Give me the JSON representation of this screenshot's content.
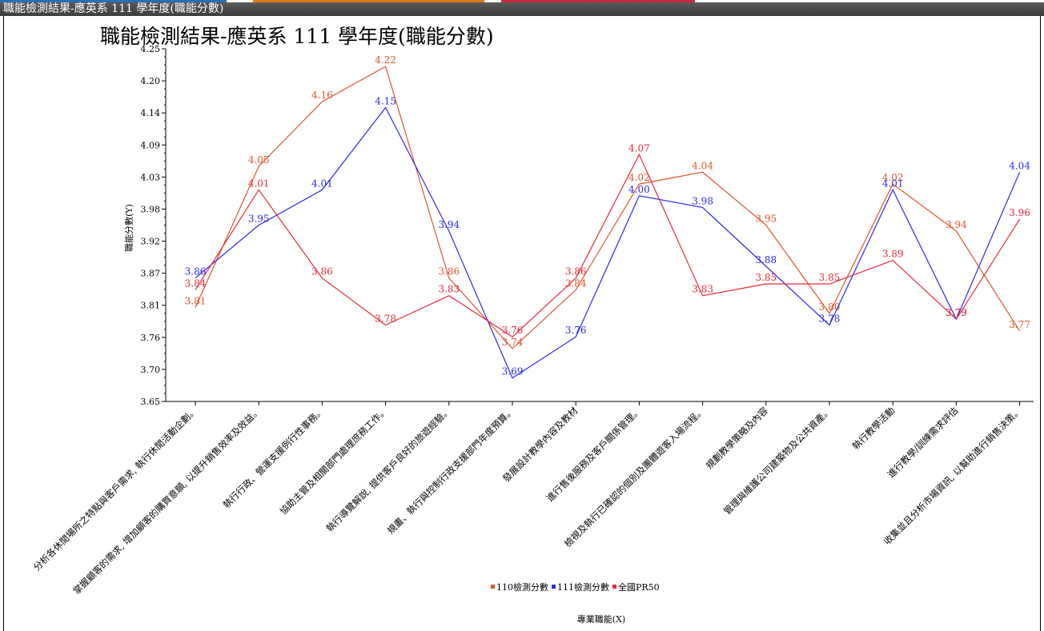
{
  "window": {
    "title": "職能檢測結果-應英系 111 學年度(職能分數)",
    "stripe_colors": [
      "#2d6db5",
      "#e07b1a",
      "#c8283c"
    ]
  },
  "chart_data": {
    "type": "line",
    "title": "職能檢測結果-應英系 111 學年度(職能分數)",
    "xlabel": "專業職能(X)",
    "ylabel": "職能分數(Y)",
    "ylim": [
      3.65,
      4.25
    ],
    "yticks": [
      "3.65",
      "3.70",
      "3.76",
      "3.81",
      "3.87",
      "3.92",
      "3.98",
      "4.03",
      "4.09",
      "4.14",
      "4.20",
      "4.25"
    ],
    "grid": false,
    "legend_position": "bottom-center",
    "categories": [
      "分析各休閒場所之特點與客戶需求, 執行休閒活動企劃。",
      "掌握顧客的需求, 增加顧客的購買意願, 以提升銷售效率及效益。",
      "執行行政、營運支援例行性事務。",
      "協助主管及相關部門處理庶務工作。",
      "執行導覽解說, 提供客戶良好的旅遊經驗。",
      "規畫、執行與控制行政支援部門年度預算。",
      "發展設計教學內容及教材",
      "進行售後服務及客戶關係管理。",
      "檢視及執行已確認的個別及團體遊客入場流程。",
      "規劃教學策略及內容",
      "管理與維護公司建築物及公共資產。",
      "執行教學活動",
      "進行教學/訓練需求評估",
      "收集並且分析市場資訊, 以幫助進行銷售決策。"
    ],
    "series": [
      {
        "name": "110檢測分數",
        "color": "#e0542b",
        "values": [
          3.81,
          4.05,
          4.16,
          4.22,
          3.86,
          3.74,
          3.84,
          4.02,
          4.04,
          3.95,
          3.8,
          4.02,
          3.94,
          3.77
        ]
      },
      {
        "name": "111檢測分數",
        "color": "#2a2ae8",
        "values": [
          3.86,
          3.95,
          4.01,
          4.15,
          3.94,
          3.69,
          3.76,
          4.0,
          3.98,
          3.88,
          3.78,
          4.01,
          3.79,
          4.04
        ]
      },
      {
        "name": "全國PR50",
        "color": "#ea2a3a",
        "values": [
          3.84,
          4.01,
          3.86,
          3.78,
          3.83,
          3.76,
          3.86,
          4.07,
          3.83,
          3.85,
          3.85,
          3.89,
          3.79,
          3.96
        ]
      }
    ]
  }
}
